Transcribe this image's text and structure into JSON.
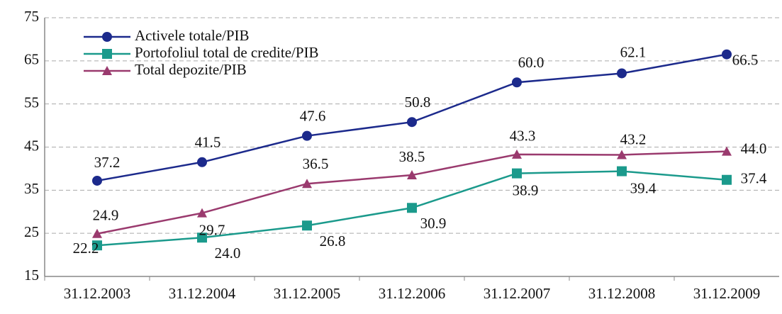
{
  "chart_data": {
    "type": "line",
    "categories": [
      "31.12.2003",
      "31.12.2004",
      "31.12.2005",
      "31.12.2006",
      "31.12.2007",
      "31.12.2008",
      "31.12.2009"
    ],
    "series": [
      {
        "name": "Activele totale/PIB",
        "color": "#1c2a8c",
        "marker": "circle",
        "values": [
          37.2,
          41.5,
          47.6,
          50.8,
          60.0,
          62.1,
          66.5
        ],
        "value_labels": [
          "37.2",
          "41.5",
          "47.6",
          "50.8",
          "60.0",
          "62.1",
          "66.5"
        ]
      },
      {
        "name": "Portofoliul total de credite/PIB",
        "color": "#1b9a8c",
        "marker": "square",
        "values": [
          22.2,
          24.0,
          26.8,
          30.9,
          38.9,
          39.4,
          37.4
        ],
        "value_labels": [
          "22.2",
          "24.0",
          "26.8",
          "30.9",
          "38.9",
          "39.4",
          "37.4"
        ]
      },
      {
        "name": "Total depozite/PIB",
        "color": "#9a3a6e",
        "marker": "triangle",
        "values": [
          24.9,
          29.7,
          36.5,
          38.5,
          43.3,
          43.2,
          44.0
        ],
        "value_labels": [
          "24.9",
          "29.7",
          "36.5",
          "38.5",
          "43.3",
          "43.2",
          "44.0"
        ]
      }
    ],
    "ylim": [
      15,
      75
    ],
    "yticks": [
      15,
      25,
      35,
      45,
      55,
      65,
      75
    ],
    "grid": true,
    "legend": "upper left"
  }
}
